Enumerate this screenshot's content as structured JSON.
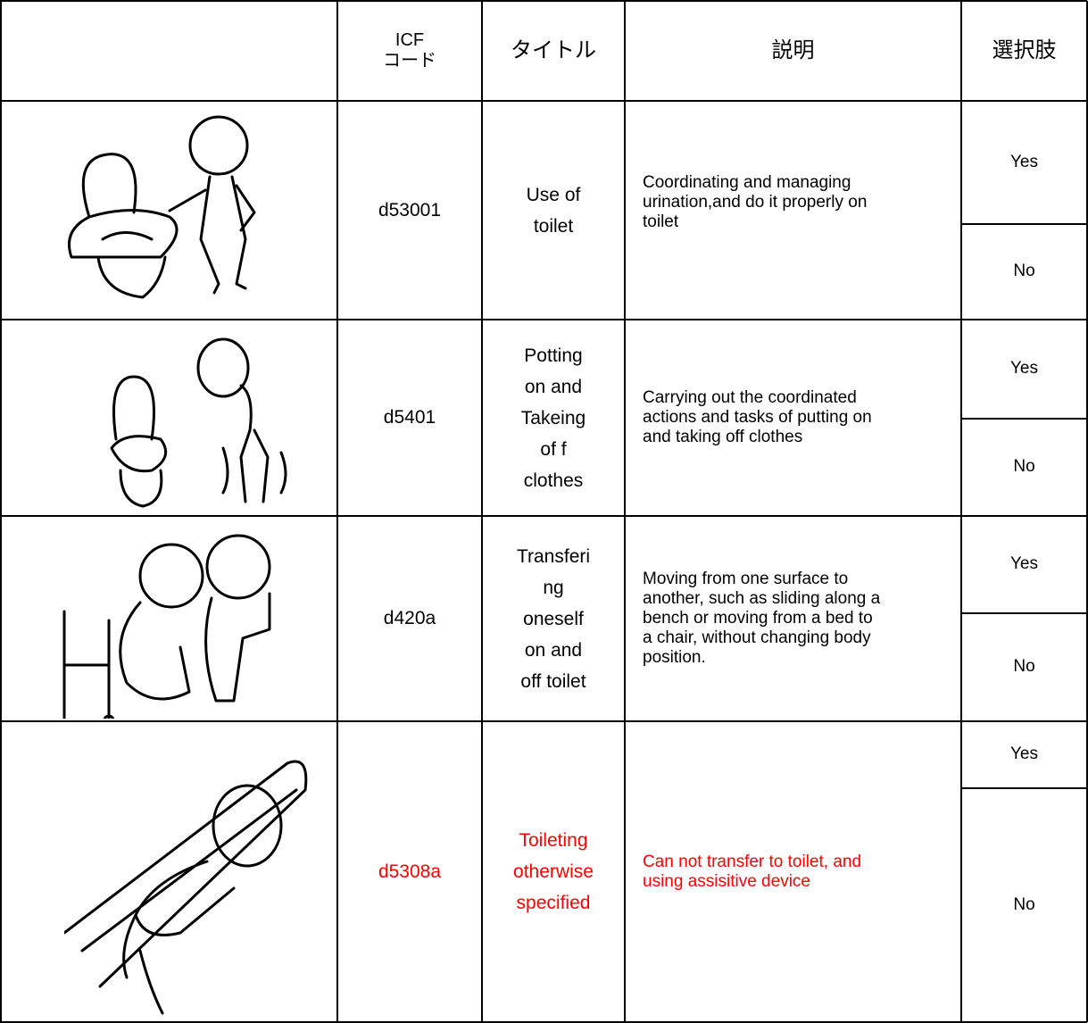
{
  "header": {
    "code": [
      "ICF",
      "コード"
    ],
    "title": "タイトル",
    "description": "説明",
    "options": "選択肢"
  },
  "rows": [
    {
      "code": "d53001",
      "title": [
        "Use of",
        "toilet"
      ],
      "description": [
        "Coordinating and managing",
        "urination,and do it properly on",
        "toilet"
      ],
      "options": [
        "Yes",
        "No"
      ]
    },
    {
      "code": "d5401",
      "title": [
        "Potting",
        "on and",
        "Takeing",
        "of f",
        "clothes"
      ],
      "description": [
        "Carrying out the coordinated",
        "actions and tasks of putting on",
        "and taking off clothes"
      ],
      "options": [
        "Yes",
        "No"
      ]
    },
    {
      "code": "d420a",
      "title": [
        "Transferi",
        "ng",
        "oneself",
        "on and",
        "off toilet"
      ],
      "description": [
        "Moving from one surface to",
        "another, such as sliding along a",
        "bench or moving from a bed to",
        "a chair, without changing body",
        "position."
      ],
      "options": [
        "Yes",
        "No"
      ]
    },
    {
      "code": "d5308a",
      "title": [
        "Toileting",
        "otherwise",
        "specified"
      ],
      "description": [
        "Can not transfer to toilet, and",
        "using assisitive device"
      ],
      "options": [
        "Yes",
        "No"
      ]
    }
  ]
}
